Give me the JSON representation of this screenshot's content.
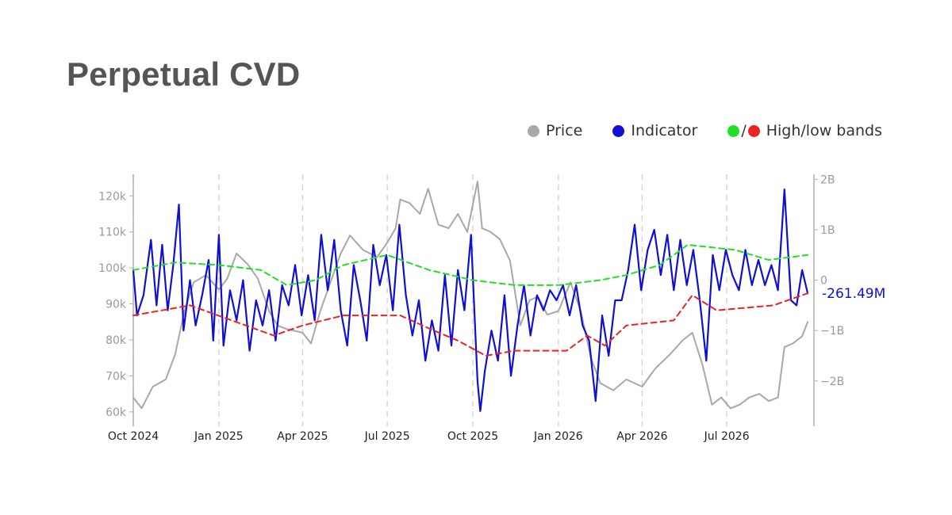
{
  "title": "Perpetual CVD",
  "legend": {
    "price": {
      "label": "Price",
      "color": "#a8a8a8"
    },
    "indicator": {
      "label": "Indicator",
      "color": "#1010d0"
    },
    "bands": {
      "label": "High/low bands",
      "separator": "/",
      "high_color": "#22e022",
      "low_color": "#ee2222"
    }
  },
  "chart_data": {
    "type": "line",
    "title": "Perpetual CVD",
    "x_axis": {
      "type": "date",
      "range": [
        "2024-10-01",
        "2026-10-01"
      ],
      "ticks": [
        {
          "date": "2024-10-01",
          "label": "Oct 2024"
        },
        {
          "date": "2025-01-01",
          "label": "Jan 2025"
        },
        {
          "date": "2025-04-01",
          "label": "Apr 2025"
        },
        {
          "date": "2025-07-01",
          "label": "Jul 2025"
        },
        {
          "date": "2025-10-01",
          "label": "Oct 2025"
        },
        {
          "date": "2026-01-01",
          "label": "Jan 2026"
        },
        {
          "date": "2026-04-01",
          "label": "Apr 2026"
        },
        {
          "date": "2026-07-01",
          "label": "Jul 2026"
        }
      ],
      "grid": "dashed vertical"
    },
    "y_left": {
      "series": "Price",
      "range": [
        56000,
        126000
      ],
      "ticks": [
        {
          "value": 60000,
          "label": "60k"
        },
        {
          "value": 70000,
          "label": "70k"
        },
        {
          "value": 80000,
          "label": "80k"
        },
        {
          "value": 90000,
          "label": "90k"
        },
        {
          "value": 100000,
          "label": "100k"
        },
        {
          "value": 110000,
          "label": "110k"
        },
        {
          "value": 120000,
          "label": "120k"
        }
      ]
    },
    "y_right": {
      "series": [
        "Indicator",
        "High/low bands"
      ],
      "range": [
        -2900000000,
        2100000000
      ],
      "ticks": [
        {
          "value": -2000000000,
          "label": "−2B"
        },
        {
          "value": -1000000000,
          "label": "−1B"
        },
        {
          "value": 0,
          "label": "0"
        },
        {
          "value": 1000000000,
          "label": "1B"
        },
        {
          "value": 2000000000,
          "label": "2B"
        }
      ]
    },
    "last_value_label": "-261.49M",
    "series": [
      {
        "name": "Price",
        "axis": "left",
        "color": "#a8a8a8",
        "points": [
          [
            "2024-10-01",
            64000
          ],
          [
            "2024-10-10",
            61000
          ],
          [
            "2024-10-22",
            67000
          ],
          [
            "2024-11-05",
            69000
          ],
          [
            "2024-11-15",
            76000
          ],
          [
            "2024-11-25",
            88000
          ],
          [
            "2024-12-05",
            96000
          ],
          [
            "2024-12-18",
            98000
          ],
          [
            "2025-01-01",
            94000
          ],
          [
            "2025-01-10",
            97000
          ],
          [
            "2025-01-20",
            104000
          ],
          [
            "2025-02-01",
            101000
          ],
          [
            "2025-02-12",
            97000
          ],
          [
            "2025-02-24",
            88000
          ],
          [
            "2025-03-05",
            84000
          ],
          [
            "2025-03-15",
            83000
          ],
          [
            "2025-04-01",
            82000
          ],
          [
            "2025-04-10",
            79000
          ],
          [
            "2025-04-20",
            88000
          ],
          [
            "2025-05-01",
            96000
          ],
          [
            "2025-05-12",
            104000
          ],
          [
            "2025-05-22",
            109000
          ],
          [
            "2025-06-05",
            105000
          ],
          [
            "2025-06-20",
            103000
          ],
          [
            "2025-07-01",
            107000
          ],
          [
            "2025-07-10",
            111000
          ],
          [
            "2025-07-15",
            119000
          ],
          [
            "2025-07-25",
            118000
          ],
          [
            "2025-08-05",
            115000
          ],
          [
            "2025-08-14",
            122000
          ],
          [
            "2025-08-25",
            112000
          ],
          [
            "2025-09-05",
            111000
          ],
          [
            "2025-09-15",
            115000
          ],
          [
            "2025-09-25",
            110000
          ],
          [
            "2025-10-06",
            124000
          ],
          [
            "2025-10-11",
            111000
          ],
          [
            "2025-10-20",
            110000
          ],
          [
            "2025-10-30",
            108000
          ],
          [
            "2025-11-10",
            102000
          ],
          [
            "2025-11-21",
            84000
          ],
          [
            "2025-12-01",
            91000
          ],
          [
            "2025-12-10",
            92000
          ],
          [
            "2025-12-20",
            87000
          ],
          [
            "2026-01-01",
            88000
          ],
          [
            "2026-01-14",
            96000
          ],
          [
            "2026-01-25",
            88000
          ],
          [
            "2026-02-05",
            75000
          ],
          [
            "2026-02-15",
            68000
          ],
          [
            "2026-03-01",
            66000
          ],
          [
            "2026-03-15",
            69000
          ],
          [
            "2026-04-01",
            67000
          ],
          [
            "2026-04-15",
            72000
          ],
          [
            "2026-05-01",
            76000
          ],
          [
            "2026-05-15",
            80000
          ],
          [
            "2026-05-25",
            82000
          ],
          [
            "2026-06-05",
            73000
          ],
          [
            "2026-06-15",
            62000
          ],
          [
            "2026-06-25",
            64000
          ],
          [
            "2026-07-05",
            61000
          ],
          [
            "2026-07-15",
            62000
          ],
          [
            "2026-07-25",
            64000
          ],
          [
            "2026-08-05",
            65000
          ],
          [
            "2026-08-15",
            63000
          ],
          [
            "2026-08-25",
            64000
          ],
          [
            "2026-09-01",
            78000
          ],
          [
            "2026-09-10",
            79000
          ],
          [
            "2026-09-20",
            81000
          ],
          [
            "2026-09-26",
            85000
          ]
        ]
      },
      {
        "name": "Indicator",
        "axis": "right",
        "color": "#1010d0",
        "points": [
          [
            "2024-10-01",
            200000000
          ],
          [
            "2024-10-05",
            -700000000
          ],
          [
            "2024-10-12",
            -300000000
          ],
          [
            "2024-10-20",
            800000000
          ],
          [
            "2024-10-26",
            -500000000
          ],
          [
            "2024-11-01",
            700000000
          ],
          [
            "2024-11-07",
            -600000000
          ],
          [
            "2024-11-13",
            300000000
          ],
          [
            "2024-11-19",
            1500000000
          ],
          [
            "2024-11-24",
            -1000000000
          ],
          [
            "2024-12-01",
            0
          ],
          [
            "2024-12-07",
            -900000000
          ],
          [
            "2024-12-14",
            -300000000
          ],
          [
            "2024-12-21",
            400000000
          ],
          [
            "2024-12-26",
            -1200000000
          ],
          [
            "2025-01-01",
            900000000
          ],
          [
            "2025-01-06",
            -1300000000
          ],
          [
            "2025-01-13",
            -200000000
          ],
          [
            "2025-01-20",
            -800000000
          ],
          [
            "2025-01-27",
            0
          ],
          [
            "2025-02-03",
            -1400000000
          ],
          [
            "2025-02-10",
            -400000000
          ],
          [
            "2025-02-17",
            -900000000
          ],
          [
            "2025-02-24",
            -200000000
          ],
          [
            "2025-03-03",
            -1200000000
          ],
          [
            "2025-03-10",
            -100000000
          ],
          [
            "2025-03-17",
            -500000000
          ],
          [
            "2025-03-24",
            300000000
          ],
          [
            "2025-03-31",
            -700000000
          ],
          [
            "2025-04-07",
            100000000
          ],
          [
            "2025-04-14",
            -800000000
          ],
          [
            "2025-04-21",
            900000000
          ],
          [
            "2025-04-28",
            -200000000
          ],
          [
            "2025-05-05",
            800000000
          ],
          [
            "2025-05-12",
            -600000000
          ],
          [
            "2025-05-19",
            -1300000000
          ],
          [
            "2025-05-26",
            300000000
          ],
          [
            "2025-06-02",
            -400000000
          ],
          [
            "2025-06-09",
            -1200000000
          ],
          [
            "2025-06-16",
            700000000
          ],
          [
            "2025-06-23",
            -100000000
          ],
          [
            "2025-06-30",
            500000000
          ],
          [
            "2025-07-07",
            -600000000
          ],
          [
            "2025-07-14",
            1100000000
          ],
          [
            "2025-07-21",
            -300000000
          ],
          [
            "2025-07-28",
            -1100000000
          ],
          [
            "2025-08-04",
            -400000000
          ],
          [
            "2025-08-11",
            -1600000000
          ],
          [
            "2025-08-18",
            -800000000
          ],
          [
            "2025-08-25",
            -1400000000
          ],
          [
            "2025-09-01",
            100000000
          ],
          [
            "2025-09-08",
            -1300000000
          ],
          [
            "2025-09-15",
            200000000
          ],
          [
            "2025-09-22",
            -600000000
          ],
          [
            "2025-09-29",
            900000000
          ],
          [
            "2025-10-06",
            -2000000000
          ],
          [
            "2025-10-09",
            -2600000000
          ],
          [
            "2025-10-14",
            -1800000000
          ],
          [
            "2025-10-21",
            -1000000000
          ],
          [
            "2025-10-28",
            -1600000000
          ],
          [
            "2025-11-04",
            -300000000
          ],
          [
            "2025-11-11",
            -1900000000
          ],
          [
            "2025-11-18",
            -900000000
          ],
          [
            "2025-11-25",
            -100000000
          ],
          [
            "2025-12-02",
            -1100000000
          ],
          [
            "2025-12-09",
            -300000000
          ],
          [
            "2025-12-16",
            -600000000
          ],
          [
            "2025-12-23",
            -200000000
          ],
          [
            "2025-12-30",
            -400000000
          ],
          [
            "2026-01-06",
            -100000000
          ],
          [
            "2026-01-13",
            -700000000
          ],
          [
            "2026-01-20",
            -100000000
          ],
          [
            "2026-01-27",
            -900000000
          ],
          [
            "2026-02-03",
            -1200000000
          ],
          [
            "2026-02-10",
            -2400000000
          ],
          [
            "2026-02-17",
            -700000000
          ],
          [
            "2026-02-24",
            -1500000000
          ],
          [
            "2026-03-03",
            -400000000
          ],
          [
            "2026-03-10",
            -400000000
          ],
          [
            "2026-03-17",
            200000000
          ],
          [
            "2026-03-24",
            1100000000
          ],
          [
            "2026-03-31",
            -200000000
          ],
          [
            "2026-04-07",
            600000000
          ],
          [
            "2026-04-14",
            1000000000
          ],
          [
            "2026-04-21",
            100000000
          ],
          [
            "2026-04-28",
            900000000
          ],
          [
            "2026-05-05",
            -200000000
          ],
          [
            "2026-05-12",
            800000000
          ],
          [
            "2026-05-19",
            -100000000
          ],
          [
            "2026-05-26",
            600000000
          ],
          [
            "2026-06-02",
            -400000000
          ],
          [
            "2026-06-09",
            -1600000000
          ],
          [
            "2026-06-16",
            500000000
          ],
          [
            "2026-06-23",
            -200000000
          ],
          [
            "2026-06-30",
            600000000
          ],
          [
            "2026-07-07",
            100000000
          ],
          [
            "2026-07-14",
            -200000000
          ],
          [
            "2026-07-21",
            600000000
          ],
          [
            "2026-07-28",
            -100000000
          ],
          [
            "2026-08-04",
            400000000
          ],
          [
            "2026-08-11",
            -100000000
          ],
          [
            "2026-08-18",
            300000000
          ],
          [
            "2026-08-25",
            -200000000
          ],
          [
            "2026-09-01",
            1800000000
          ],
          [
            "2026-09-08",
            -400000000
          ],
          [
            "2026-09-14",
            -500000000
          ],
          [
            "2026-09-20",
            200000000
          ],
          [
            "2026-09-26",
            -261490000
          ]
        ]
      },
      {
        "name": "High band",
        "axis": "right",
        "color": "#22e022",
        "style": "dashed",
        "points": [
          [
            "2024-10-01",
            200000000
          ],
          [
            "2024-11-15",
            350000000
          ],
          [
            "2025-01-01",
            300000000
          ],
          [
            "2025-02-15",
            200000000
          ],
          [
            "2025-03-15",
            -100000000
          ],
          [
            "2025-04-15",
            0
          ],
          [
            "2025-05-15",
            300000000
          ],
          [
            "2025-07-01",
            500000000
          ],
          [
            "2025-08-15",
            200000000
          ],
          [
            "2025-10-01",
            0
          ],
          [
            "2025-11-15",
            -100000000
          ],
          [
            "2026-01-01",
            -100000000
          ],
          [
            "2026-02-15",
            0
          ],
          [
            "2026-03-15",
            100000000
          ],
          [
            "2026-04-20",
            300000000
          ],
          [
            "2026-05-20",
            700000000
          ],
          [
            "2026-07-10",
            600000000
          ],
          [
            "2026-08-15",
            400000000
          ],
          [
            "2026-09-26",
            500000000
          ]
        ]
      },
      {
        "name": "Low band",
        "axis": "right",
        "color": "#ee2222",
        "style": "dashed",
        "points": [
          [
            "2024-10-01",
            -700000000
          ],
          [
            "2024-12-01",
            -500000000
          ],
          [
            "2025-01-15",
            -800000000
          ],
          [
            "2025-03-01",
            -1100000000
          ],
          [
            "2025-04-01",
            -900000000
          ],
          [
            "2025-05-15",
            -700000000
          ],
          [
            "2025-07-15",
            -700000000
          ],
          [
            "2025-08-20",
            -1000000000
          ],
          [
            "2025-09-15",
            -1200000000
          ],
          [
            "2025-10-15",
            -1500000000
          ],
          [
            "2025-11-15",
            -1400000000
          ],
          [
            "2025-12-15",
            -1400000000
          ],
          [
            "2026-01-10",
            -1400000000
          ],
          [
            "2026-02-01",
            -1100000000
          ],
          [
            "2026-02-20",
            -1300000000
          ],
          [
            "2026-03-15",
            -900000000
          ],
          [
            "2026-05-05",
            -800000000
          ],
          [
            "2026-05-25",
            -300000000
          ],
          [
            "2026-06-20",
            -600000000
          ],
          [
            "2026-08-20",
            -500000000
          ],
          [
            "2026-09-26",
            -261490000
          ]
        ]
      }
    ]
  }
}
